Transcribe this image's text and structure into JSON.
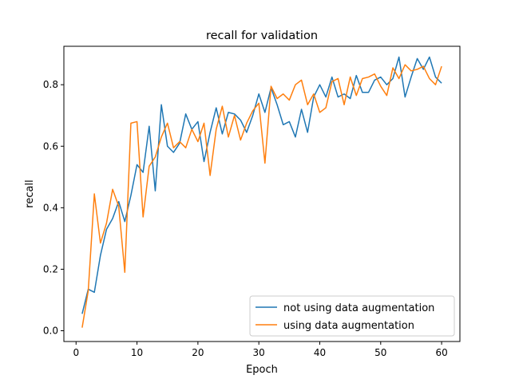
{
  "chart_data": {
    "type": "line",
    "title": "recall for validation",
    "xlabel": "Epoch",
    "ylabel": "recall",
    "xlim": [
      -2,
      63
    ],
    "ylim": [
      -0.035,
      0.925
    ],
    "xticks": [
      0,
      10,
      20,
      30,
      40,
      50,
      60
    ],
    "yticks": [
      0.0,
      0.2,
      0.4,
      0.6,
      0.8
    ],
    "grid": false,
    "legend_position": "lower right",
    "x": [
      1,
      2,
      3,
      4,
      5,
      6,
      7,
      8,
      9,
      10,
      11,
      12,
      13,
      14,
      15,
      16,
      17,
      18,
      19,
      20,
      21,
      22,
      23,
      24,
      25,
      26,
      27,
      28,
      29,
      30,
      31,
      32,
      33,
      34,
      35,
      36,
      37,
      38,
      39,
      40,
      41,
      42,
      43,
      44,
      45,
      46,
      47,
      48,
      49,
      50,
      51,
      52,
      53,
      54,
      55,
      56,
      57,
      58,
      59,
      60
    ],
    "series": [
      {
        "name": "not using data augmentation",
        "color": "#1f77b4",
        "values": [
          0.055,
          0.135,
          0.125,
          0.245,
          0.33,
          0.365,
          0.42,
          0.355,
          0.44,
          0.54,
          0.515,
          0.665,
          0.455,
          0.735,
          0.6,
          0.58,
          0.61,
          0.705,
          0.655,
          0.68,
          0.55,
          0.645,
          0.725,
          0.64,
          0.71,
          0.705,
          0.685,
          0.645,
          0.7,
          0.77,
          0.71,
          0.79,
          0.735,
          0.67,
          0.68,
          0.63,
          0.72,
          0.645,
          0.76,
          0.8,
          0.76,
          0.825,
          0.76,
          0.77,
          0.755,
          0.83,
          0.775,
          0.775,
          0.815,
          0.825,
          0.8,
          0.82,
          0.89,
          0.76,
          0.825,
          0.885,
          0.85,
          0.89,
          0.825,
          0.805
        ]
      },
      {
        "name": "using data augmentation",
        "color": "#ff7f0e",
        "values": [
          0.01,
          0.13,
          0.445,
          0.285,
          0.35,
          0.46,
          0.405,
          0.19,
          0.675,
          0.68,
          0.37,
          0.535,
          0.565,
          0.63,
          0.675,
          0.595,
          0.615,
          0.595,
          0.655,
          0.615,
          0.675,
          0.505,
          0.655,
          0.73,
          0.63,
          0.7,
          0.62,
          0.675,
          0.715,
          0.74,
          0.545,
          0.795,
          0.755,
          0.77,
          0.75,
          0.8,
          0.815,
          0.735,
          0.77,
          0.71,
          0.725,
          0.81,
          0.82,
          0.735,
          0.825,
          0.765,
          0.82,
          0.825,
          0.835,
          0.795,
          0.765,
          0.855,
          0.82,
          0.865,
          0.845,
          0.85,
          0.86,
          0.82,
          0.8,
          0.86
        ]
      }
    ]
  }
}
